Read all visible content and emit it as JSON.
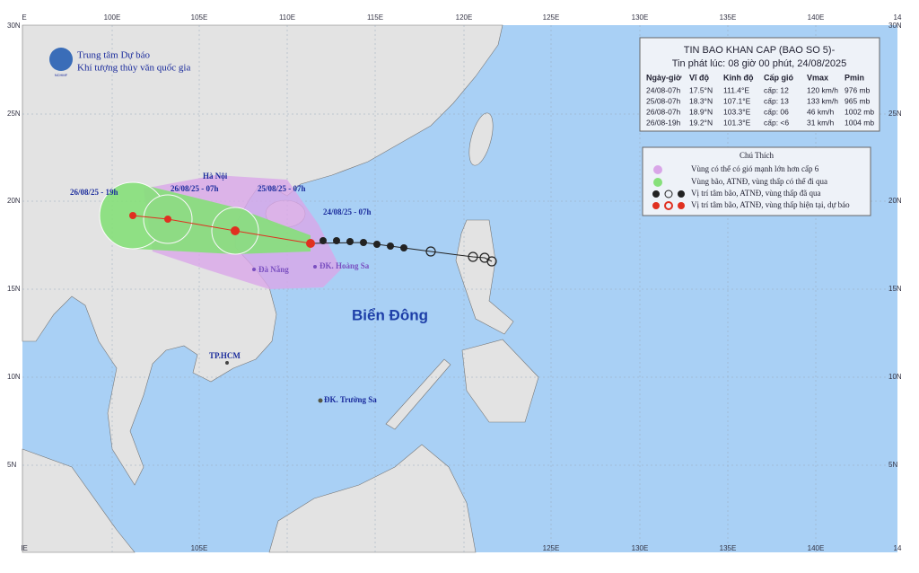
{
  "header": {
    "org_line1": "Trung tâm Dự báo",
    "org_line2": "Khí tượng thủy văn quốc gia",
    "logo_text": "NCHMF"
  },
  "axes": {
    "top": [
      "E",
      "100E",
      "105E",
      "110E",
      "115E",
      "120E",
      "125E",
      "130E",
      "135E",
      "140E",
      "14"
    ],
    "bottom": [
      "IE",
      "105E",
      "125E",
      "130E",
      "135E",
      "140E",
      "14"
    ],
    "left": [
      "30N",
      "25N",
      "20N",
      "15N",
      "10N",
      "5N"
    ],
    "right": [
      "30N",
      "25N",
      "20N",
      "15N",
      "10N",
      "5N"
    ]
  },
  "bulletin": {
    "title": "TIN BAO KHAN CAP (BAO SO 5)-",
    "subtitle": "Tin phát lúc: 08 giờ 00 phút, 24/08/2025",
    "columns": [
      "Ngày-giờ",
      "Vĩ độ",
      "Kinh độ",
      "Cấp gió",
      "Vmax",
      "Pmin"
    ],
    "rows": [
      [
        "24/08-07h",
        "17.5°N",
        "111.4°E",
        "cấp: 12",
        "120 km/h",
        "976 mb"
      ],
      [
        "25/08-07h",
        "18.3°N",
        "107.1°E",
        "cấp: 13",
        "133 km/h",
        "965 mb"
      ],
      [
        "26/08-07h",
        "18.9°N",
        "103.3°E",
        "cấp: 06",
        "46 km/h",
        "1002 mb"
      ],
      [
        "26/08-19h",
        "19.2°N",
        "101.3°E",
        "cấp: <6",
        "31 km/h",
        "1004 mb"
      ]
    ]
  },
  "legend": {
    "title": "Chú Thích",
    "items": [
      "Vùng có thể có gió mạnh lớn hơn cấp 6",
      "Vùng bão, ATNĐ, vùng thấp có thể đi qua",
      "Vị trí tâm bão, ATNĐ, vùng thấp đã qua",
      "Vị trí tâm bão, ATNĐ, vùng thấp hiện tại, dự báo"
    ]
  },
  "places": [
    "Hà Nội",
    "Đà Nẵng",
    "ĐK. Hoàng Sa",
    "TP.HCM",
    "ĐK. Trường Sa"
  ],
  "sea_label": "Biển Đông",
  "track_labels": [
    "26/08/25 - 19h",
    "26/08/25 - 07h",
    "25/08/25 - 07h",
    "24/08/25 - 07h"
  ]
}
